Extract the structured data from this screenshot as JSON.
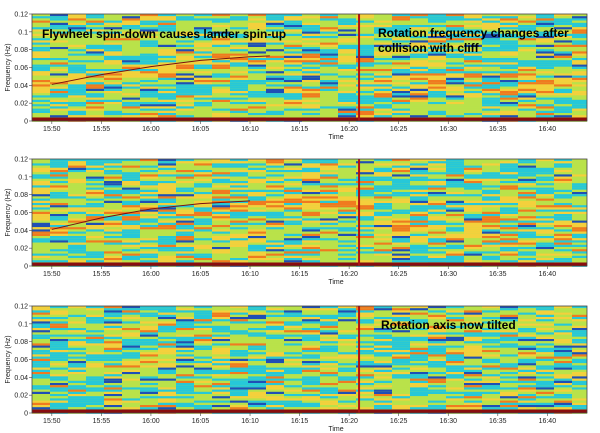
{
  "chart_data": [
    {
      "type": "heatmap",
      "panel": "top",
      "xlabel": "Time",
      "ylabel": "Frequency (Hz)",
      "x_ticks": [
        "15:50",
        "15:55",
        "16:00",
        "16:05",
        "16:10",
        "16:15",
        "16:20",
        "16:25",
        "16:30",
        "16:35",
        "16:40"
      ],
      "y_ticks": [
        "0",
        "0.02",
        "0.04",
        "0.06",
        "0.08",
        "0.1",
        "0.12"
      ],
      "ylim": [
        0,
        0.12
      ],
      "event_time": "16:21",
      "annotations": [
        "Flywheel spin-down causes lander spin-up",
        "Rotation frequency changes after collision with cliff"
      ],
      "trend_curve": {
        "x": [
          "15:50",
          "15:55",
          "16:00",
          "16:05",
          "16:10",
          "16:12"
        ],
        "y": [
          0.041,
          0.052,
          0.061,
          0.068,
          0.072,
          0.073
        ]
      },
      "colormap": [
        "#1f4fb5",
        "#26c8d8",
        "#b9e24a",
        "#f4d03c",
        "#f07a1f",
        "#c81d12"
      ]
    },
    {
      "type": "heatmap",
      "panel": "middle",
      "xlabel": "Time",
      "ylabel": "Frequency (Hz)",
      "x_ticks": [
        "15:50",
        "15:55",
        "16:00",
        "16:05",
        "16:10",
        "16:15",
        "16:20",
        "16:25",
        "16:30",
        "16:35",
        "16:40"
      ],
      "y_ticks": [
        "0",
        "0.02",
        "0.04",
        "0.06",
        "0.08",
        "0.1",
        "0.12"
      ],
      "ylim": [
        0,
        0.12
      ],
      "event_time": "16:21",
      "annotations": [],
      "trend_curve": {
        "x": [
          "15:50",
          "15:55",
          "16:00",
          "16:05",
          "16:10"
        ],
        "y": [
          0.041,
          0.054,
          0.064,
          0.07,
          0.073
        ]
      },
      "colormap": [
        "#1f4fb5",
        "#26c8d8",
        "#b9e24a",
        "#f4d03c",
        "#f07a1f",
        "#c81d12"
      ]
    },
    {
      "type": "heatmap",
      "panel": "bottom",
      "xlabel": "Time",
      "ylabel": "Frequency (Hz)",
      "x_ticks": [
        "15:50",
        "15:55",
        "16:00",
        "16:05",
        "16:10",
        "16:15",
        "16:20",
        "16:25",
        "16:30",
        "16:35",
        "16:40"
      ],
      "y_ticks": [
        "0",
        "0.02",
        "0.04",
        "0.06",
        "0.08",
        "0.1",
        "0.12"
      ],
      "ylim": [
        0,
        0.12
      ],
      "event_time": "16:21",
      "annotations": [
        "Rotation axis now tilted"
      ],
      "trend_curve": null,
      "colormap": [
        "#1f4fb5",
        "#26c8d8",
        "#b9e24a",
        "#f4d03c",
        "#f07a1f",
        "#c81d12"
      ]
    }
  ]
}
